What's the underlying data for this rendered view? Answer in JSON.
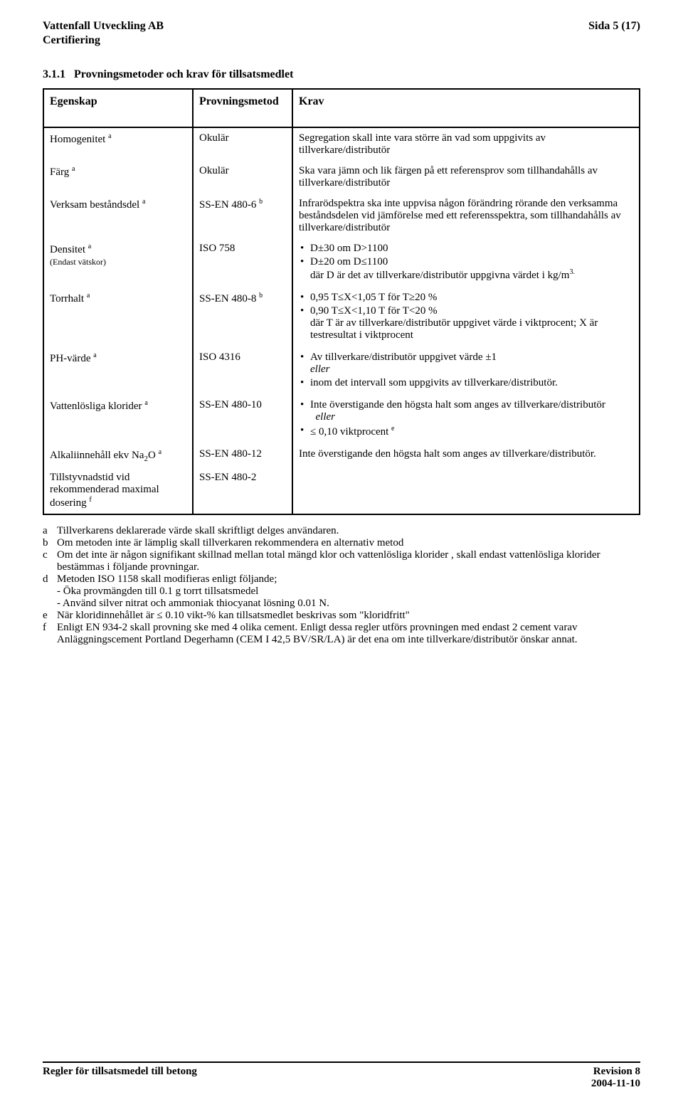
{
  "header": {
    "company": "Vattenfall Utveckling AB",
    "page": "Sida 5 (17)",
    "unit": "Certifiering"
  },
  "section": {
    "number": "3.1.1",
    "title": "Provningsmetoder och krav för  tillsatsmedlet"
  },
  "table": {
    "headers": {
      "c1": "Egenskap",
      "c2": "Provningsmetod",
      "c3": "Krav"
    },
    "rows": {
      "r1": {
        "c1a": "Homogenitet ",
        "c1s": "a",
        "c2": "Okulär",
        "c3": "Segregation skall inte vara större än vad som uppgivits av tillverkare/distributör"
      },
      "r2": {
        "c1a": "Färg ",
        "c1s": "a",
        "c2": "Okulär",
        "c3": "Ska vara jämn och lik färgen på ett referensprov som tillhandahålls av tillverkare/distributör"
      },
      "r3": {
        "c1a": "Verksam beståndsdel ",
        "c1s": "a",
        "c2a": "SS-EN 480-6 ",
        "c2s": "b",
        "c3": "Infrarödspektra ska inte uppvisa någon förändring rörande den verksamma beståndsdelen vid jämförelse med ett referensspektra, som tillhandahålls av tillverkare/distributör"
      },
      "r4": {
        "c1a": "Densitet ",
        "c1s": "a",
        "c1b": "(Endast vätskor)",
        "c2": "ISO 758",
        "b1": "D±30 om D>1100",
        "b2": "D±20 om D≤1100",
        "b3": "där D är det av tillverkare/distributör uppgivna värdet i kg/m",
        "b3s": "3."
      },
      "r5": {
        "c1a": "Torrhalt ",
        "c1s": "a",
        "c2a": "SS-EN 480-8 ",
        "c2s": "b",
        "b1": "0,95 T≤X<1,05 T för T≥20 %",
        "b2": "0,90 T≤X<1,10 T för T<20 %",
        "b3": "där T är av tillverkare/distributör uppgivet värde i viktprocent; X är testresultat i viktprocent"
      },
      "r6": {
        "c1a": "PH-värde ",
        "c1s": "a",
        "c2": "ISO 4316",
        "b1": "Av tillverkare/distributör uppgivet värde ±1",
        "b1i": "eller",
        "b2": "inom det intervall som uppgivits av tillverkare/distributör."
      },
      "r7": {
        "c1a": "Vattenlösliga klorider ",
        "c1s": "a",
        "c2": "SS-EN 480-10",
        "b1": "Inte överstigande den högsta halt som anges av tillverkare/distributör",
        "b1i": "eller",
        "b2a": "≤ 0,10 viktprocent ",
        "b2s": "e"
      },
      "r8": {
        "c1a": "Alkaliinnehåll ekv Na",
        "c1sub": "2",
        "c1b": "O ",
        "c1s": "a",
        "c2": "SS-EN 480-12",
        "c3": "Inte överstigande den högsta halt som anges av tillverkare/distributör."
      },
      "r9": {
        "c1a": "Tillstyvnadstid vid rekommenderad maximal dosering ",
        "c1s": "f",
        "c2": "SS-EN 480-2",
        "c3": ""
      }
    }
  },
  "notes": {
    "a": {
      "l": "a",
      "t": "Tillverkarens deklarerade värde skall skriftligt delges användaren."
    },
    "b": {
      "l": "b",
      "t": "Om metoden inte är lämplig skall tillverkaren rekommendera en alternativ metod"
    },
    "c": {
      "l": "c",
      "t": "Om det inte är någon signifikant skillnad mellan total mängd klor och vattenlösliga klorider , skall endast vattenlösliga klorider bestämmas i följande provningar."
    },
    "d": {
      "l": "d",
      "t": "Metoden ISO 1158 skall modifieras enligt följande;",
      "t2": "- Öka provmängden till 0.1 g torrt tillsatsmedel",
      "t3": "- Använd silver nitrat och ammoniak thiocyanat lösning 0.01 N."
    },
    "e": {
      "l": "e",
      "t": "När kloridinnehållet är ≤ 0.10 vikt-% kan tillsatsmedlet beskrivas som \"kloridfritt\""
    },
    "f": {
      "l": "f",
      "t": "Enligt EN 934-2 skall provning ske med 4 olika cement. Enligt dessa regler utförs provningen med endast 2 cement varav   Anläggningscement Portland Degerhamn (CEM I 42,5 BV/SR/LA) är det ena om inte tillverkare/distributör önskar annat."
    }
  },
  "footer": {
    "left": "Regler för tillsatsmedel till betong",
    "right1": "Revision 8",
    "right2": "2004-11-10"
  }
}
